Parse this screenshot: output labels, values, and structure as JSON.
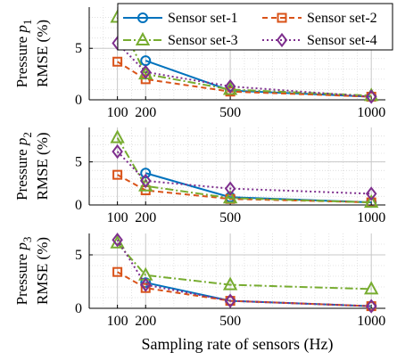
{
  "chart_data": [
    {
      "type": "line",
      "ylabel_prefix": "Pressure",
      "ylabel_var": "p",
      "ylabel_sub": "1",
      "ylabel_unit": "RMSE (%)",
      "x": [
        100,
        200,
        500,
        1000
      ],
      "x_ticks": [
        "100",
        "200",
        "500",
        "1000"
      ],
      "y_ticks": [
        "0",
        "5"
      ],
      "ylim": [
        0,
        9
      ],
      "grid": true,
      "series": [
        {
          "name": "Sensor set-1",
          "values": [
            null,
            3.8,
            0.9,
            0.3
          ]
        },
        {
          "name": "Sensor set-2",
          "values": [
            3.7,
            2.0,
            0.8,
            0.3
          ]
        },
        {
          "name": "Sensor set-3",
          "values": [
            8.0,
            2.5,
            1.0,
            0.4
          ]
        },
        {
          "name": "Sensor set-4",
          "values": [
            5.5,
            2.7,
            1.3,
            0.3
          ]
        }
      ]
    },
    {
      "type": "line",
      "ylabel_prefix": "Pressure",
      "ylabel_var": "p",
      "ylabel_sub": "2",
      "ylabel_unit": "RMSE (%)",
      "x": [
        100,
        200,
        500,
        1000
      ],
      "x_ticks": [
        "100",
        "200",
        "500",
        "1000"
      ],
      "y_ticks": [
        "0",
        "5"
      ],
      "ylim": [
        0,
        9
      ],
      "grid": true,
      "series": [
        {
          "name": "Sensor set-1",
          "values": [
            null,
            3.7,
            0.9,
            0.3
          ]
        },
        {
          "name": "Sensor set-2",
          "values": [
            3.5,
            1.7,
            0.7,
            0.3
          ]
        },
        {
          "name": "Sensor set-3",
          "values": [
            7.8,
            2.2,
            0.8,
            0.3
          ]
        },
        {
          "name": "Sensor set-4",
          "values": [
            6.2,
            2.8,
            1.9,
            1.3
          ]
        }
      ]
    },
    {
      "type": "line",
      "ylabel_prefix": "Pressure",
      "ylabel_var": "p",
      "ylabel_sub": "3",
      "ylabel_unit": "RMSE (%)",
      "x": [
        100,
        200,
        500,
        1000
      ],
      "x_ticks": [
        "100",
        "200",
        "500",
        "1000"
      ],
      "y_ticks": [
        "0",
        "5"
      ],
      "ylim": [
        0,
        7
      ],
      "grid": true,
      "series": [
        {
          "name": "Sensor set-1",
          "values": [
            null,
            2.4,
            0.7,
            0.2
          ]
        },
        {
          "name": "Sensor set-2",
          "values": [
            3.4,
            1.9,
            0.7,
            0.2
          ]
        },
        {
          "name": "Sensor set-3",
          "values": [
            6.1,
            3.1,
            2.2,
            1.8
          ]
        },
        {
          "name": "Sensor set-4",
          "values": [
            6.4,
            2.2,
            0.7,
            0.2
          ]
        }
      ]
    }
  ],
  "xlabel": "Sampling rate of sensors (Hz)",
  "legend": {
    "placement": "top-right",
    "entries": [
      "Sensor set-1",
      "Sensor set-2",
      "Sensor set-3",
      "Sensor set-4"
    ]
  },
  "styles": [
    {
      "color": "#0072BD",
      "dash": "none",
      "marker": "circle"
    },
    {
      "color": "#D95319",
      "dash": "6,4",
      "marker": "square"
    },
    {
      "color": "#77AC30",
      "dash": "9,3,2,3",
      "marker": "triangle"
    },
    {
      "color": "#7E2F8E",
      "dash": "2,3",
      "marker": "diamond"
    }
  ]
}
